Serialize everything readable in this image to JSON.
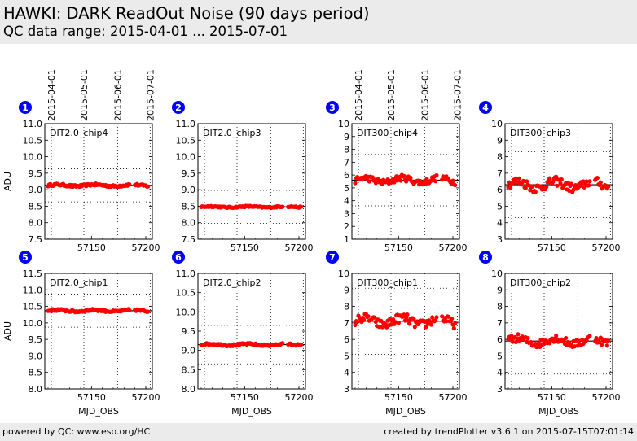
{
  "header": {
    "title": "HAWKI: DARK ReadOut Noise (90 days period)",
    "subtitle": "QC data range: 2015-04-01 ... 2015-07-01"
  },
  "footer": {
    "left": "powered by QC: www.eso.org/HC",
    "right": "created by trendPlotter v3.6.1 on 2015-07-15T07:01:14"
  },
  "colors": {
    "points": "#ff0000",
    "marker_fill": "#0000ff",
    "header_bg": "#ebebeb"
  },
  "chart_data": [
    {
      "type": "scatter",
      "panel": "1",
      "label": "DIT2.0_chip4",
      "ylabel": "ADU",
      "xlabel": "",
      "xlim": [
        57107,
        57206
      ],
      "ylim": [
        7.5,
        11.0
      ],
      "yticks": [
        "7.5",
        "8.0",
        "8.5",
        "9.0",
        "9.5",
        "10.0",
        "10.5",
        "11.0"
      ],
      "xticks": [
        "57150",
        "57200"
      ],
      "date_ticks": [
        "2015-04-01",
        "2015-05-01",
        "2015-06-01",
        "2015-07-01"
      ],
      "date_tick_mjd": [
        57113,
        57143,
        57174,
        57204
      ],
      "mean": 9.13,
      "sigma": 0.5,
      "spread": 0.04,
      "grid": true
    },
    {
      "type": "scatter",
      "panel": "2",
      "label": "DIT2.0_chip3",
      "ylabel": "",
      "xlabel": "",
      "xlim": [
        57107,
        57206
      ],
      "ylim": [
        7.5,
        11.0
      ],
      "yticks": [
        "7.5",
        "8.0",
        "8.5",
        "9.0",
        "9.5",
        "10.0",
        "10.5",
        "11.0"
      ],
      "xticks": [
        "57150",
        "57200"
      ],
      "date_ticks": [],
      "date_tick_mjd": [
        57113,
        57143,
        57174,
        57204
      ],
      "mean": 8.48,
      "sigma": 0.5,
      "spread": 0.025,
      "grid": true
    },
    {
      "type": "scatter",
      "panel": "3",
      "label": "DIT300_chip4",
      "ylabel": "",
      "xlabel": "",
      "xlim": [
        57107,
        57206
      ],
      "ylim": [
        1,
        10
      ],
      "yticks": [
        "1",
        "2",
        "3",
        "4",
        "5",
        "6",
        "7",
        "8",
        "9",
        "10"
      ],
      "xticks": [
        "57150",
        "57200"
      ],
      "date_ticks": [
        "2015-04-01",
        "2015-05-01",
        "2015-06-01",
        "2015-07-01"
      ],
      "date_tick_mjd": [
        57113,
        57143,
        57174,
        57204
      ],
      "mean": 5.6,
      "sigma": 2.0,
      "spread": 0.3,
      "grid": true
    },
    {
      "type": "scatter",
      "panel": "4",
      "label": "DIT300_chip3",
      "ylabel": "",
      "xlabel": "",
      "xlim": [
        57107,
        57206
      ],
      "ylim": [
        3,
        10
      ],
      "yticks": [
        "3",
        "4",
        "5",
        "6",
        "7",
        "8",
        "9",
        "10"
      ],
      "xticks": [
        "57150",
        "57200"
      ],
      "date_ticks": [],
      "date_tick_mjd": [
        57113,
        57143,
        57174,
        57204
      ],
      "mean": 6.3,
      "sigma": 2.0,
      "spread": 0.35,
      "grid": true
    },
    {
      "type": "scatter",
      "panel": "5",
      "label": "DIT2.0_chip1",
      "ylabel": "ADU",
      "xlabel": "MJD_OBS",
      "xlim": [
        57107,
        57206
      ],
      "ylim": [
        8.0,
        11.5
      ],
      "yticks": [
        "8.0",
        "8.5",
        "9.0",
        "9.5",
        "10.0",
        "10.5",
        "11.0",
        "11.5"
      ],
      "xticks": [
        "57150",
        "57200"
      ],
      "date_ticks": [],
      "date_tick_mjd": [
        57113,
        57143,
        57174,
        57204
      ],
      "mean": 10.37,
      "sigma": 0.5,
      "spread": 0.04,
      "grid": true
    },
    {
      "type": "scatter",
      "panel": "6",
      "label": "DIT2.0_chip2",
      "ylabel": "",
      "xlabel": "MJD_OBS",
      "xlim": [
        57107,
        57206
      ],
      "ylim": [
        8.0,
        11.0
      ],
      "yticks": [
        "8.0",
        "8.5",
        "9.0",
        "9.5",
        "10.0",
        "10.5",
        "11.0"
      ],
      "xticks": [
        "57150",
        "57200"
      ],
      "date_ticks": [],
      "date_tick_mjd": [
        57113,
        57143,
        57174,
        57204
      ],
      "mean": 9.15,
      "sigma": 0.5,
      "spread": 0.03,
      "grid": true
    },
    {
      "type": "scatter",
      "panel": "7",
      "label": "DIT300_chip1",
      "ylabel": "",
      "xlabel": "MJD_OBS",
      "xlim": [
        57107,
        57206
      ],
      "ylim": [
        3,
        10
      ],
      "yticks": [
        "3",
        "4",
        "5",
        "6",
        "7",
        "8",
        "9",
        "10"
      ],
      "xticks": [
        "57150",
        "57200"
      ],
      "date_ticks": [],
      "date_tick_mjd": [
        57113,
        57143,
        57174,
        57204
      ],
      "mean": 7.1,
      "sigma": 2.0,
      "spread": 0.35,
      "grid": true
    },
    {
      "type": "scatter",
      "panel": "8",
      "label": "DIT300_chip2",
      "ylabel": "",
      "xlabel": "MJD_OBS",
      "xlim": [
        57107,
        57206
      ],
      "ylim": [
        3,
        10
      ],
      "yticks": [
        "3",
        "4",
        "5",
        "6",
        "7",
        "8",
        "9",
        "10"
      ],
      "xticks": [
        "57150",
        "57200"
      ],
      "date_ticks": [],
      "date_tick_mjd": [
        57113,
        57143,
        57174,
        57204
      ],
      "mean": 5.9,
      "sigma": 2.0,
      "spread": 0.3,
      "grid": true
    }
  ],
  "observation_mjd": [
    57110,
    57111,
    57112,
    57113,
    57114,
    57115,
    57116,
    57117,
    57118,
    57119,
    57120,
    57121,
    57122,
    57123,
    57124,
    57125,
    57126,
    57127,
    57128,
    57129,
    57130,
    57131,
    57132,
    57133,
    57134,
    57135,
    57136,
    57137,
    57138,
    57139,
    57140,
    57141,
    57142,
    57143,
    57144,
    57145,
    57146,
    57147,
    57148,
    57149,
    57150,
    57151,
    57152,
    57153,
    57154,
    57155,
    57156,
    57157,
    57158,
    57159,
    57160,
    57161,
    57162,
    57163,
    57164,
    57165,
    57166,
    57167,
    57168,
    57169,
    57170,
    57171,
    57172,
    57173,
    57174,
    57175,
    57176,
    57177,
    57178,
    57179,
    57180,
    57181,
    57182,
    57183,
    57184,
    57185,
    57190,
    57191,
    57192,
    57193,
    57194,
    57195,
    57196,
    57197,
    57198,
    57199,
    57200,
    57201,
    57202
  ]
}
